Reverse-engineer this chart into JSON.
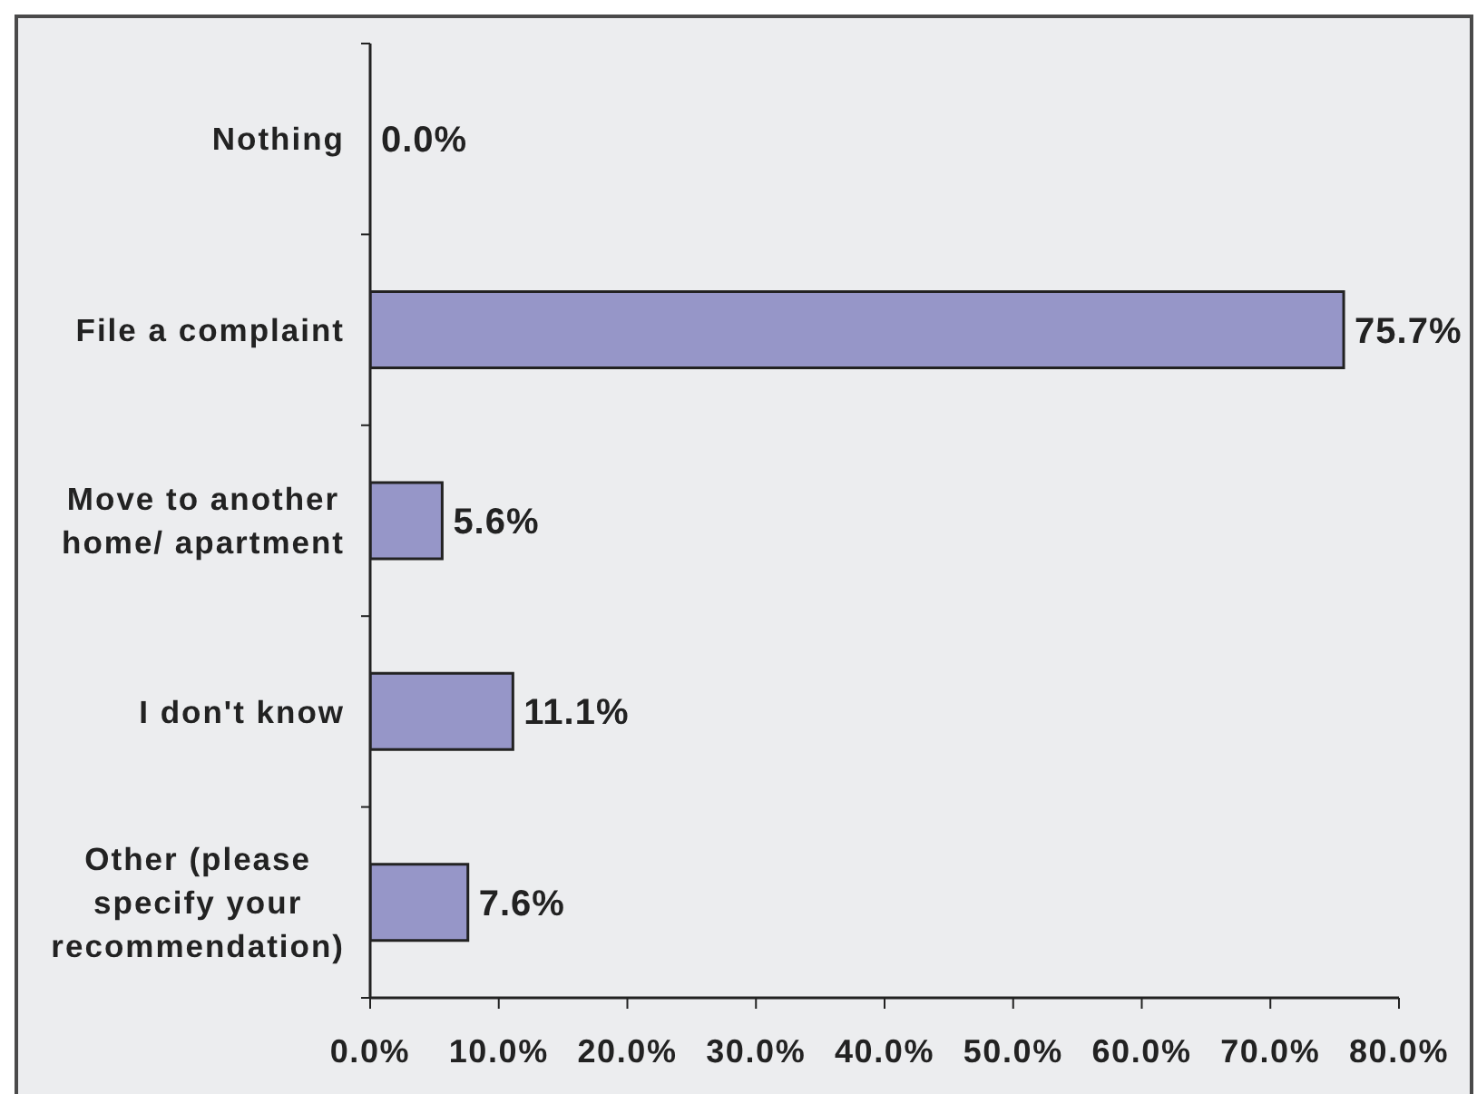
{
  "chart_data": {
    "type": "bar",
    "orientation": "horizontal",
    "categories": [
      "Nothing",
      "File a complaint",
      "Move to another\nhome/ apartment",
      "I don't know",
      "Other (please\nspecify your\nrecommendation)"
    ],
    "values": [
      0.0,
      75.7,
      5.6,
      11.1,
      7.6
    ],
    "color": "#9696c8",
    "value_labels": [
      "0.0%",
      "75.7%",
      "5.6%",
      "11.1%",
      "7.6%"
    ],
    "xlim": [
      0,
      80
    ],
    "xticks": [
      {
        "value": 0,
        "label": "0.0%"
      },
      {
        "value": 10,
        "label": "10.0%"
      },
      {
        "value": 20,
        "label": "20.0%"
      },
      {
        "value": 30,
        "label": "30.0%"
      },
      {
        "value": 40,
        "label": "40.0%"
      },
      {
        "value": 50,
        "label": "50.0%"
      },
      {
        "value": 60,
        "label": "60.0%"
      },
      {
        "value": 70,
        "label": "70.0%"
      },
      {
        "value": 80,
        "label": "80.0%"
      }
    ]
  }
}
